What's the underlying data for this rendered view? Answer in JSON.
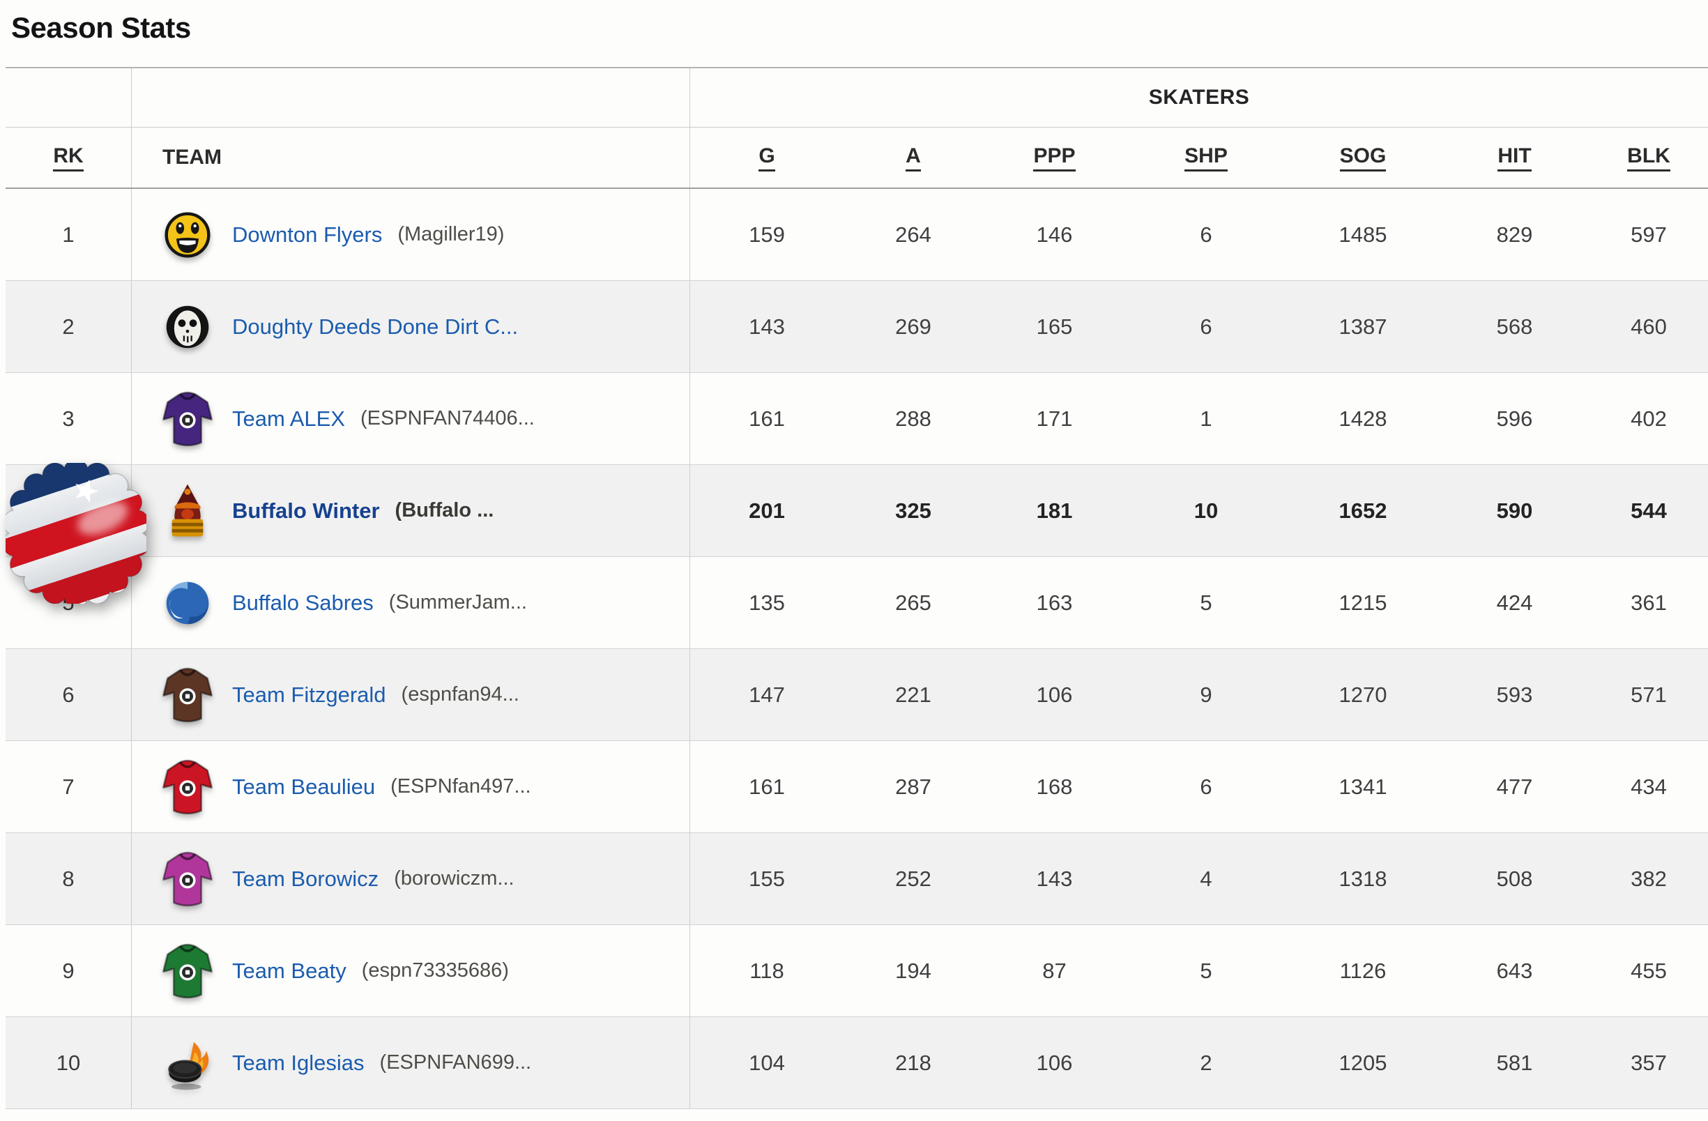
{
  "page": {
    "title": "Season Stats"
  },
  "table": {
    "group_header": "SKATERS",
    "columns": {
      "rank": "RK",
      "team": "TEAM",
      "stats": [
        "G",
        "A",
        "PPP",
        "SHP",
        "SOG",
        "HIT",
        "BLK"
      ]
    },
    "rows": [
      {
        "rank": "1",
        "name": "Downton Flyers",
        "manager": "(Magiller19)",
        "icon": "smiley-face-icon",
        "icon_shape": "icon-smiley",
        "icon_color": "#f3c317",
        "bold": false,
        "stats": [
          "159",
          "264",
          "146",
          "6",
          "1485",
          "829",
          "597"
        ]
      },
      {
        "rank": "2",
        "name": "Doughty Deeds Done Dirt C...",
        "manager": "",
        "icon": "goalie-mask-icon",
        "icon_shape": "icon-mask",
        "icon_color": "#efeee8",
        "bold": false,
        "stats": [
          "143",
          "269",
          "165",
          "6",
          "1387",
          "568",
          "460"
        ]
      },
      {
        "rank": "3",
        "name": "Team ALEX",
        "manager": "(ESPNFAN74406...",
        "icon": "purple-jersey-icon",
        "icon_shape": "icon-jersey",
        "icon_color": "#46257f",
        "bold": false,
        "stats": [
          "161",
          "288",
          "171",
          "1",
          "1428",
          "596",
          "402"
        ]
      },
      {
        "rank": "",
        "name": "Buffalo Winter",
        "manager": "(Buffalo ...",
        "icon": "winter-hat-icon",
        "icon_shape": "icon-winter",
        "icon_color": "#7a1d14",
        "bold": true,
        "stats": [
          "201",
          "325",
          "181",
          "10",
          "1652",
          "590",
          "544"
        ]
      },
      {
        "rank": "5",
        "name": "Buffalo Sabres",
        "manager": "(SummerJam...",
        "icon": "blue-swirl-icon",
        "icon_shape": "icon-swirl",
        "icon_color": "#2b67b5",
        "bold": false,
        "stats": [
          "135",
          "265",
          "163",
          "5",
          "1215",
          "424",
          "361"
        ]
      },
      {
        "rank": "6",
        "name": "Team Fitzgerald",
        "manager": "(espnfan94...",
        "icon": "brown-jersey-icon",
        "icon_shape": "icon-jersey",
        "icon_color": "#5d3524",
        "bold": false,
        "stats": [
          "147",
          "221",
          "106",
          "9",
          "1270",
          "593",
          "571"
        ]
      },
      {
        "rank": "7",
        "name": "Team Beaulieu",
        "manager": "(ESPNfan497...",
        "icon": "red-jersey-icon",
        "icon_shape": "icon-jersey",
        "icon_color": "#cc1524",
        "bold": false,
        "stats": [
          "161",
          "287",
          "168",
          "6",
          "1341",
          "477",
          "434"
        ]
      },
      {
        "rank": "8",
        "name": "Team Borowicz",
        "manager": "(borowiczm...",
        "icon": "magenta-jersey-icon",
        "icon_shape": "icon-jersey",
        "icon_color": "#b0369c",
        "bold": false,
        "stats": [
          "155",
          "252",
          "143",
          "4",
          "1318",
          "508",
          "382"
        ]
      },
      {
        "rank": "9",
        "name": "Team Beaty",
        "manager": "(espn73335686)",
        "icon": "green-jersey-icon",
        "icon_shape": "icon-jersey",
        "icon_color": "#1d7a33",
        "bold": false,
        "stats": [
          "118",
          "194",
          "87",
          "5",
          "1126",
          "643",
          "455"
        ]
      },
      {
        "rank": "10",
        "name": "Team Iglesias",
        "manager": "(ESPNFAN699...",
        "icon": "flaming-puck-icon",
        "icon_shape": "icon-puck",
        "icon_color": "#161616",
        "bold": false,
        "stats": [
          "104",
          "218",
          "106",
          "2",
          "1205",
          "581",
          "357"
        ]
      }
    ]
  },
  "badge": {
    "description": "patriotic-bottle-cap-badge",
    "colors": {
      "blue": "#17376e",
      "red": "#cf1420",
      "white": "#eef0f2"
    }
  }
}
